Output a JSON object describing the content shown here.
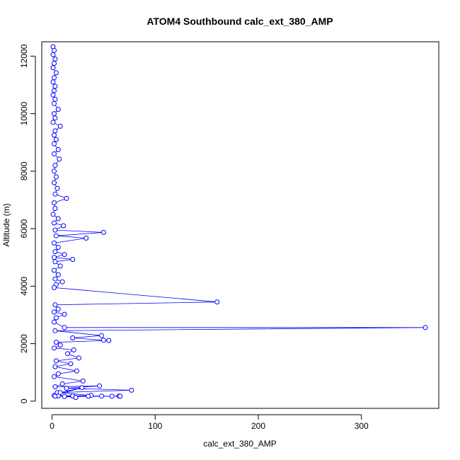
{
  "chart_data": {
    "type": "line",
    "title": "ATOM4 Southbound calc_ext_380_AMP",
    "xlabel": "calc_ext_380_AMP",
    "ylabel": "Altitude (m)",
    "xlim": [
      -10,
      375
    ],
    "ylim": [
      -250,
      12500
    ],
    "xticks": [
      0,
      100,
      200,
      300
    ],
    "yticks": [
      0,
      2000,
      4000,
      6000,
      8000,
      10000,
      12000
    ],
    "grid": false,
    "legend": "none",
    "colors": {
      "series": "#0000ff",
      "axis": "#000000"
    },
    "series": [
      {
        "values": [
          [
            1,
            12330
          ],
          [
            2,
            12200
          ],
          [
            1,
            12050
          ],
          [
            3,
            11900
          ],
          [
            2,
            11750
          ],
          [
            1,
            11600
          ],
          [
            4,
            11420
          ],
          [
            2,
            11250
          ],
          [
            1,
            11100
          ],
          [
            3,
            10950
          ],
          [
            2,
            10800
          ],
          [
            1,
            10650
          ],
          [
            3,
            10500
          ],
          [
            2,
            10350
          ],
          [
            6,
            10150
          ],
          [
            2,
            10000
          ],
          [
            3,
            9850
          ],
          [
            1,
            9700
          ],
          [
            8,
            9560
          ],
          [
            3,
            9400
          ],
          [
            2,
            9250
          ],
          [
            4,
            9100
          ],
          [
            2,
            8950
          ],
          [
            6,
            8750
          ],
          [
            2,
            8600
          ],
          [
            7,
            8420
          ],
          [
            3,
            8200
          ],
          [
            2,
            8000
          ],
          [
            4,
            7800
          ],
          [
            2,
            7600
          ],
          [
            5,
            7400
          ],
          [
            3,
            7200
          ],
          [
            14,
            7050
          ],
          [
            2,
            6900
          ],
          [
            3,
            6700
          ],
          [
            1,
            6500
          ],
          [
            6,
            6350
          ],
          [
            2,
            6200
          ],
          [
            11,
            6100
          ],
          [
            3,
            5950
          ],
          [
            50,
            5870
          ],
          [
            4,
            5750
          ],
          [
            33,
            5670
          ],
          [
            2,
            5500
          ],
          [
            6,
            5350
          ],
          [
            3,
            5200
          ],
          [
            12,
            5100
          ],
          [
            2,
            5000
          ],
          [
            20,
            4930
          ],
          [
            3,
            4850
          ],
          [
            8,
            4700
          ],
          [
            2,
            4550
          ],
          [
            6,
            4400
          ],
          [
            3,
            4250
          ],
          [
            10,
            4150
          ],
          [
            4,
            4050
          ],
          [
            2,
            3950
          ],
          [
            160,
            3450
          ],
          [
            3,
            3350
          ],
          [
            6,
            3200
          ],
          [
            2,
            3100
          ],
          [
            12,
            3020
          ],
          [
            4,
            2900
          ],
          [
            2,
            2750
          ],
          [
            12,
            2560
          ],
          [
            362,
            2560
          ],
          [
            3,
            2450
          ],
          [
            48,
            2280
          ],
          [
            20,
            2200
          ],
          [
            50,
            2120
          ],
          [
            55,
            2110
          ],
          [
            4,
            2050
          ],
          [
            8,
            1950
          ],
          [
            2,
            1850
          ],
          [
            21,
            1780
          ],
          [
            15,
            1650
          ],
          [
            26,
            1500
          ],
          [
            4,
            1400
          ],
          [
            18,
            1300
          ],
          [
            3,
            1200
          ],
          [
            24,
            1050
          ],
          [
            6,
            950
          ],
          [
            2,
            850
          ],
          [
            30,
            700
          ],
          [
            10,
            600
          ],
          [
            3,
            500
          ],
          [
            46,
            530
          ],
          [
            14,
            450
          ],
          [
            77,
            380
          ],
          [
            5,
            300
          ],
          [
            38,
            200
          ],
          [
            20,
            180
          ],
          [
            48,
            175
          ],
          [
            58,
            170
          ],
          [
            65,
            175
          ],
          [
            66,
            170
          ],
          [
            12,
            160
          ],
          [
            23,
            130
          ],
          [
            6,
            180
          ],
          [
            35,
            170
          ],
          [
            2,
            200
          ],
          [
            29,
            470
          ],
          [
            8,
            300
          ],
          [
            3,
            170
          ]
        ]
      }
    ]
  }
}
